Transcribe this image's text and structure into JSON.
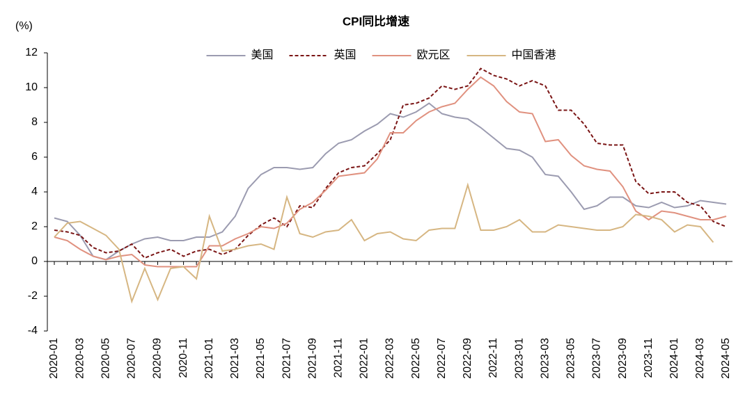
{
  "chart_data": {
    "type": "line",
    "title": "CPI同比增速",
    "y_label": "(%)",
    "categories": [
      "2020-01",
      null,
      "2020-03",
      null,
      "2020-05",
      null,
      "2020-07",
      null,
      "2020-09",
      null,
      "2020-11",
      null,
      "2021-01",
      null,
      "2021-03",
      null,
      "2021-05",
      null,
      "2021-07",
      null,
      "2021-09",
      null,
      "2021-11",
      null,
      "2022-01",
      null,
      "2022-03",
      null,
      "2022-05",
      null,
      "2022-07",
      null,
      "2022-09",
      null,
      "2022-11",
      null,
      "2023-01",
      null,
      "2023-03",
      null,
      "2023-05",
      null,
      "2023-07",
      null,
      "2023-09",
      null,
      "2023-11",
      null,
      "2024-01",
      null,
      "2024-03",
      null,
      "2024-05"
    ],
    "series": [
      {
        "name": "美国",
        "color": "#9b9bb0",
        "style": "solid",
        "values": [
          2.5,
          2.3,
          1.5,
          0.3,
          0.1,
          0.6,
          1.0,
          1.3,
          1.4,
          1.2,
          1.2,
          1.4,
          1.4,
          1.7,
          2.6,
          4.2,
          5.0,
          5.4,
          5.4,
          5.3,
          5.4,
          6.2,
          6.8,
          7.0,
          7.5,
          7.9,
          8.5,
          8.3,
          8.6,
          9.1,
          8.5,
          8.3,
          8.2,
          7.7,
          7.1,
          6.5,
          6.4,
          6.0,
          5.0,
          4.9,
          4.0,
          3.0,
          3.2,
          3.7,
          3.7,
          3.2,
          3.1,
          3.4,
          3.1,
          3.2,
          3.5,
          3.4,
          3.3
        ]
      },
      {
        "name": "英国",
        "color": "#7a1414",
        "style": "dashed",
        "values": [
          1.8,
          1.7,
          1.5,
          0.8,
          0.5,
          0.6,
          1.0,
          0.2,
          0.5,
          0.7,
          0.3,
          0.6,
          0.7,
          0.4,
          0.7,
          1.5,
          2.1,
          2.5,
          2.0,
          3.2,
          3.1,
          4.2,
          5.1,
          5.4,
          5.5,
          6.2,
          7.0,
          9.0,
          9.1,
          9.4,
          10.1,
          9.9,
          10.1,
          11.1,
          10.7,
          10.5,
          10.1,
          10.4,
          10.1,
          8.7,
          8.7,
          7.9,
          6.8,
          6.7,
          6.7,
          4.6,
          3.9,
          4.0,
          4.0,
          3.4,
          3.2,
          2.3,
          2.0
        ]
      },
      {
        "name": "欧元区",
        "color": "#e0917f",
        "style": "solid",
        "values": [
          1.4,
          1.2,
          0.7,
          0.3,
          0.1,
          0.3,
          0.4,
          -0.2,
          -0.3,
          -0.3,
          -0.3,
          -0.3,
          0.9,
          0.9,
          1.3,
          1.6,
          2.0,
          1.9,
          2.2,
          3.0,
          3.4,
          4.1,
          4.9,
          5.0,
          5.1,
          5.9,
          7.4,
          7.4,
          8.1,
          8.6,
          8.9,
          9.1,
          9.9,
          10.6,
          10.1,
          9.2,
          8.6,
          8.5,
          6.9,
          7.0,
          6.1,
          5.5,
          5.3,
          5.2,
          4.3,
          2.9,
          2.4,
          2.9,
          2.8,
          2.6,
          2.4,
          2.4,
          2.6
        ]
      },
      {
        "name": "中国香港",
        "color": "#d6b682",
        "style": "solid",
        "values": [
          1.4,
          2.2,
          2.3,
          1.9,
          1.5,
          0.7,
          -2.3,
          -0.4,
          -2.2,
          -0.4,
          -0.3,
          -1.0,
          2.6,
          0.6,
          0.7,
          0.9,
          1.0,
          0.7,
          3.7,
          1.6,
          1.4,
          1.7,
          1.8,
          2.4,
          1.2,
          1.6,
          1.7,
          1.3,
          1.2,
          1.8,
          1.9,
          1.9,
          4.4,
          1.8,
          1.8,
          2.0,
          2.4,
          1.7,
          1.7,
          2.1,
          2.0,
          1.9,
          1.8,
          1.8,
          2.0,
          2.7,
          2.6,
          2.4,
          1.7,
          2.1,
          2.0,
          1.1,
          null
        ]
      }
    ],
    "ylim": [
      -4,
      12
    ],
    "yticks": [
      -4,
      -2,
      0,
      2,
      4,
      6,
      8,
      10,
      12
    ],
    "grid": false,
    "legend": "top"
  }
}
